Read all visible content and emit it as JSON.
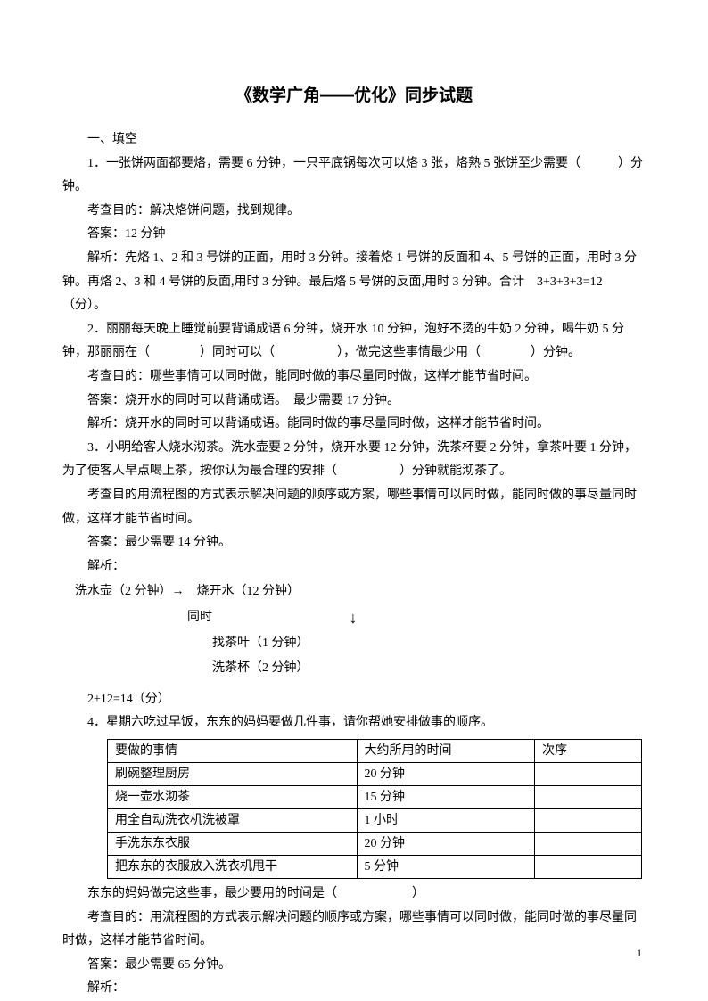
{
  "title": "《数学广角——优化》同步试题",
  "section": "一、填空",
  "q1": {
    "text": "1．一张饼两面都要烙，需要 6 分钟，一只平底锅每次可以烙 3 张，烙熟 5 张饼至少需要（　　　）分钟。",
    "goal": "考查目的：解决烙饼问题，找到规律。",
    "ans": "答案：12 分钟",
    "exp": "解析：先烙 1、2 和 3 号饼的正面，用时 3 分钟。接着烙 1 号饼的反面和 4、5 号饼的正面，用时 3 分钟。再烙 2、3 和 4 号饼的反面,用时 3 分钟。最后烙 5 号饼的反面,用时 3 分钟。合计　3+3+3+3=12（分）。"
  },
  "q2": {
    "text": "2．丽丽每天晚上睡觉前要背诵成语 6 分钟，烧开水 10 分钟，泡好不烫的牛奶 2 分钟，喝牛奶 5 分钟，那丽丽在（　　　　）同时可以（　　　　　），做完这些事情最少用（　　　　）分钟。",
    "goal": "考查目的：哪些事情可以同时做，能同时做的事尽量同时做，这样才能节省时间。",
    "ans": "答案：烧开水的同时可以背诵成语。　最少需要 17 分钟。",
    "exp": "解析：烧开水的同时可以背诵成语。能同时做的事尽量同时做，这样才能节省时间。"
  },
  "q3": {
    "text": "3．小明给客人烧水沏茶。洗水壶要 2 分钟，烧开水要 12 分钟，洗茶杯要 2 分钟，拿茶叶要 1 分钟，为了使客人早点喝上茶，按你认为最合理的安排（　　　　　）分钟就能沏茶了。",
    "goal": "考查目的用流程图的方式表示解决问题的顺序或方案，哪些事情可以同时做，能同时做的事尽量同时做，这样才能节省时间。",
    "ans": "答案：最少需要 14 分钟。",
    "exp_label": "解析：",
    "flow": {
      "row1": "洗水壶（2 分钟）→　烧开水（12 分钟）",
      "sim": "同时",
      "sub1": "找茶叶（1 分钟）",
      "sub2": "洗茶杯（2 分钟）"
    },
    "calc": "2+12=14（分）"
  },
  "q4": {
    "text": "4．星期六吃过早饭，东东的妈妈要做几件事，请你帮她安排做事的顺序。",
    "table": {
      "h1": "要做的事情",
      "h2": "大约所用的时间",
      "h3": "次序",
      "r1c1": "刷碗整理厨房",
      "r1c2": "20 分钟",
      "r2c1": "烧一壶水沏茶",
      "r2c2": "15 分钟",
      "r3c1": "用全自动洗衣机洗被罩",
      "r3c2": "1 小时",
      "r4c1": "手洗东东衣服",
      "r4c2": "20 分钟",
      "r5c1": "把东东的衣服放入洗衣机甩干",
      "r5c2": "5 分钟"
    },
    "after": "东东的妈妈做完这些事，最少要用的时间是（　　　　　　）",
    "goal": "考查目的：用流程图的方式表示解决问题的顺序或方案，哪些事情可以同时做，能同时做的事尽量同时做，这样才能节省时间。",
    "ans": "答案：最少需要 65 分钟。",
    "exp": "解析："
  },
  "pageNum": "1"
}
